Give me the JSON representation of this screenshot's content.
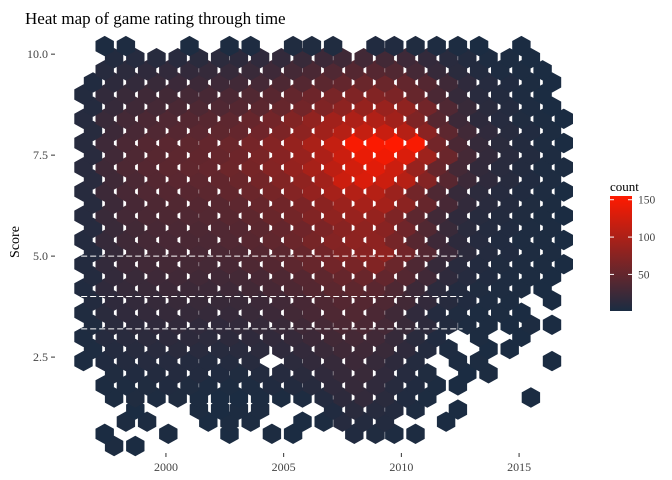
{
  "chart_data": {
    "type": "heatmap",
    "geometry": "hexbin",
    "title": "Heat map of game rating through time",
    "xlabel": "",
    "ylabel": "Score",
    "xlim": [
      1995.5,
      2017.8
    ],
    "ylim": [
      0.2,
      10.4
    ],
    "x_ticks": [
      2000,
      2005,
      2010,
      2015
    ],
    "y_ticks": [
      2.5,
      5.0,
      7.5,
      10.0
    ],
    "y_tick_labels": [
      "2.5",
      "5.0",
      "7.5",
      "10.0"
    ],
    "grid": false,
    "legend": {
      "title": "count",
      "position": "right",
      "ticks": [
        50,
        100,
        150
      ],
      "domain": [
        1,
        155
      ]
    },
    "colors": {
      "low": "#1a2c42",
      "high": "#ff1a00",
      "missing": "#ffffff"
    },
    "hex_grid": {
      "x_start": 1996.5,
      "x_step": 0.88,
      "y_start": 0.0,
      "y_step": 0.3
    },
    "rows": [
      {
        "y": 0.3,
        "counts": {
          "1997.8": 3,
          "1998.7": 2
        }
      },
      {
        "y": 0.6,
        "counts": {
          "1997.4": 2,
          "2000.1": 3,
          "2002.7": 2,
          "2004.5": 3,
          "2005.4": 2,
          "2008.0": 6,
          "2008.9": 5,
          "2009.7": 4,
          "2010.6": 3
        }
      },
      {
        "y": 0.9,
        "counts": {
          "1998.3": 3,
          "1999.2": 3,
          "2001.8": 2,
          "2002.7": 3,
          "2003.6": 3,
          "2005.8": 2,
          "2006.7": 3,
          "2007.5": 9,
          "2008.4": 8,
          "2009.3": 7,
          "2011.9": 2
        }
      },
      {
        "y": 1.2,
        "counts": {
          "1998.7": 2,
          "2001.4": 3,
          "2002.3": 2,
          "2003.1": 3,
          "2004.0": 4,
          "2007.1": 6,
          "2008.0": 12,
          "2008.9": 10,
          "2009.7": 8,
          "2010.6": 4,
          "2012.4": 2
        }
      },
      {
        "y": 1.5,
        "counts": {
          "1997.8": 3,
          "1998.7": 5,
          "1999.6": 4,
          "2000.5": 5,
          "2001.4": 3,
          "2002.3": 2,
          "2003.1": 2,
          "2004.0": 3,
          "2004.9": 3,
          "2005.8": 4,
          "2006.7": 8,
          "2007.5": 14,
          "2008.4": 18,
          "2009.3": 12,
          "2010.2": 6,
          "2011.1": 3,
          "2015.5": 2
        }
      },
      {
        "y": 1.8,
        "counts": {
          "1997.4": 3,
          "1998.3": 4,
          "1999.2": 5,
          "2000.1": 6,
          "2001.0": 5,
          "2001.8": 4,
          "2002.7": 3,
          "2003.6": 4,
          "2004.5": 6,
          "2005.4": 7,
          "2006.2": 10,
          "2007.1": 15,
          "2008.0": 20,
          "2008.9": 16,
          "2009.7": 10,
          "2010.6": 6,
          "2011.5": 3,
          "2012.4": 2
        }
      },
      {
        "y": 2.1,
        "counts": {
          "1997.8": 5,
          "1998.7": 6,
          "1999.6": 7,
          "2000.5": 8,
          "2001.4": 7,
          "2002.3": 6,
          "2003.1": 5,
          "2004.0": 7,
          "2004.9": 9,
          "2005.8": 12,
          "2006.7": 16,
          "2007.5": 20,
          "2008.4": 22,
          "2009.3": 16,
          "2010.2": 9,
          "2011.1": 5,
          "2012.8": 2,
          "2013.7": 3
        }
      },
      {
        "y": 2.4,
        "counts": {
          "1996.5": 3,
          "1997.4": 6,
          "1998.3": 8,
          "1999.2": 9,
          "2000.1": 9,
          "2001.0": 8,
          "2001.8": 7,
          "2002.7": 8,
          "2003.6": 10,
          "2005.4": 13,
          "2006.2": 17,
          "2007.1": 20,
          "2008.0": 24,
          "2008.9": 20,
          "2009.7": 14,
          "2010.6": 8,
          "2012.4": 3,
          "2013.3": 3,
          "2016.4": 2
        }
      },
      {
        "y": 2.7,
        "counts": {
          "1996.9": 4,
          "1997.8": 8,
          "1998.7": 10,
          "1999.6": 11,
          "2000.5": 12,
          "2001.4": 11,
          "2002.3": 10,
          "2003.1": 11,
          "2004.0": 13,
          "2004.9": 15,
          "2005.8": 18,
          "2006.7": 22,
          "2007.5": 26,
          "2008.4": 26,
          "2009.3": 22,
          "2010.2": 15,
          "2011.1": 8,
          "2012.0": 4,
          "2013.7": 2,
          "2014.6": 2
        }
      },
      {
        "y": 3.0,
        "counts": {
          "1996.5": 4,
          "1997.4": 9,
          "1998.3": 11,
          "1999.2": 13,
          "2000.1": 14,
          "2001.0": 14,
          "2001.8": 13,
          "2002.7": 14,
          "2003.6": 15,
          "2004.5": 17,
          "2005.4": 20,
          "2006.2": 24,
          "2007.1": 28,
          "2008.0": 30,
          "2008.9": 27,
          "2009.7": 20,
          "2010.6": 12,
          "2011.5": 6,
          "2013.3": 3,
          "2015.1": 2
        }
      },
      {
        "y": 3.3,
        "counts": {
          "1996.9": 5,
          "1997.8": 12,
          "1998.7": 14,
          "1999.6": 16,
          "2000.5": 17,
          "2001.4": 16,
          "2002.3": 16,
          "2003.1": 17,
          "2004.0": 19,
          "2004.9": 22,
          "2005.8": 26,
          "2006.7": 30,
          "2007.5": 34,
          "2008.4": 34,
          "2009.3": 30,
          "2010.2": 22,
          "2011.1": 14,
          "2012.0": 7,
          "2012.8": 4,
          "2013.7": 3,
          "2014.6": 2,
          "2015.5": 3,
          "2016.4": 2
        }
      },
      {
        "y": 3.6,
        "counts": {
          "1996.5": 5,
          "1997.4": 12,
          "1998.3": 16,
          "1999.2": 18,
          "2000.1": 19,
          "2001.0": 19,
          "2001.8": 19,
          "2002.7": 20,
          "2003.6": 22,
          "2004.5": 24,
          "2005.4": 28,
          "2006.2": 32,
          "2007.1": 36,
          "2008.0": 38,
          "2008.9": 34,
          "2009.7": 26,
          "2010.6": 16,
          "2011.5": 8,
          "2012.4": 5,
          "2013.3": 3,
          "2014.2": 3,
          "2015.1": 2
        }
      },
      {
        "y": 3.9,
        "counts": {
          "1996.9": 7,
          "1997.8": 15,
          "1998.7": 18,
          "1999.6": 20,
          "2000.5": 21,
          "2001.4": 21,
          "2002.3": 21,
          "2003.1": 22,
          "2004.0": 24,
          "2004.9": 27,
          "2005.8": 31,
          "2006.7": 36,
          "2007.5": 40,
          "2008.4": 40,
          "2009.3": 36,
          "2010.2": 28,
          "2011.1": 18,
          "2012.0": 10,
          "2012.8": 6,
          "2013.7": 4,
          "2014.6": 3,
          "2016.4": 2
        }
      },
      {
        "y": 4.2,
        "counts": {
          "1996.5": 6,
          "1997.4": 16,
          "1998.3": 20,
          "1999.2": 22,
          "2000.1": 24,
          "2001.0": 24,
          "2001.8": 24,
          "2002.7": 25,
          "2003.6": 28,
          "2004.5": 31,
          "2005.4": 35,
          "2006.2": 40,
          "2007.1": 45,
          "2008.0": 47,
          "2008.9": 44,
          "2009.7": 36,
          "2010.6": 24,
          "2011.5": 13,
          "2012.4": 7,
          "2013.3": 5,
          "2014.2": 4,
          "2015.1": 3,
          "2016.0": 2
        }
      },
      {
        "y": 4.5,
        "counts": {
          "1996.9": 8,
          "1997.8": 18,
          "1998.7": 22,
          "1999.6": 25,
          "2000.5": 27,
          "2001.4": 27,
          "2002.3": 27,
          "2003.1": 29,
          "2004.0": 32,
          "2004.9": 36,
          "2005.8": 41,
          "2006.7": 47,
          "2007.5": 52,
          "2008.4": 54,
          "2009.3": 50,
          "2010.2": 40,
          "2011.1": 27,
          "2012.0": 15,
          "2012.8": 9,
          "2013.7": 6,
          "2014.6": 4,
          "2015.5": 3,
          "2016.4": 2
        }
      },
      {
        "y": 4.8,
        "counts": {
          "1996.5": 7,
          "1997.4": 18,
          "1998.3": 24,
          "1999.2": 27,
          "2000.1": 29,
          "2001.0": 30,
          "2001.8": 30,
          "2002.7": 32,
          "2003.6": 36,
          "2004.5": 40,
          "2005.4": 46,
          "2006.2": 53,
          "2007.1": 60,
          "2008.0": 64,
          "2008.9": 70,
          "2009.7": 55,
          "2010.6": 36,
          "2011.5": 20,
          "2012.4": 11,
          "2013.3": 7,
          "2014.2": 5,
          "2015.1": 4,
          "2016.0": 3,
          "2016.9": 2
        }
      },
      {
        "y": 5.1,
        "counts": {
          "1996.9": 8,
          "1997.8": 20,
          "1998.7": 26,
          "1999.6": 29,
          "2000.5": 31,
          "2001.4": 32,
          "2002.3": 33,
          "2003.1": 35,
          "2004.0": 40,
          "2004.9": 45,
          "2005.8": 52,
          "2006.7": 60,
          "2007.5": 70,
          "2008.4": 75,
          "2009.3": 80,
          "2010.2": 60,
          "2011.1": 40,
          "2012.0": 23,
          "2012.8": 13,
          "2013.7": 8,
          "2014.6": 6,
          "2015.5": 4,
          "2016.4": 3
        }
      },
      {
        "y": 5.4,
        "counts": {
          "1996.5": 8,
          "1997.4": 20,
          "1998.3": 26,
          "1999.2": 30,
          "2000.1": 32,
          "2001.0": 33,
          "2001.8": 34,
          "2002.7": 37,
          "2003.6": 42,
          "2004.5": 48,
          "2005.4": 55,
          "2006.2": 63,
          "2007.1": 72,
          "2008.0": 78,
          "2008.9": 78,
          "2009.7": 62,
          "2010.6": 42,
          "2011.5": 25,
          "2012.4": 14,
          "2013.3": 9,
          "2014.2": 6,
          "2015.1": 4,
          "2016.0": 3,
          "2016.9": 2
        }
      },
      {
        "y": 5.7,
        "counts": {
          "1996.9": 9,
          "1997.8": 22,
          "1998.7": 28,
          "1999.6": 32,
          "2000.5": 34,
          "2001.4": 35,
          "2002.3": 37,
          "2003.1": 40,
          "2004.0": 45,
          "2004.9": 51,
          "2005.8": 58,
          "2006.7": 66,
          "2007.5": 75,
          "2008.4": 80,
          "2009.3": 75,
          "2010.2": 58,
          "2011.1": 38,
          "2012.0": 22,
          "2012.8": 12,
          "2013.7": 8,
          "2014.6": 6,
          "2015.5": 4,
          "2016.4": 3
        }
      },
      {
        "y": 6.0,
        "counts": {
          "1996.5": 9,
          "1997.4": 22,
          "1998.3": 29,
          "1999.2": 33,
          "2000.1": 35,
          "2001.0": 37,
          "2001.8": 39,
          "2002.7": 42,
          "2003.6": 47,
          "2004.5": 54,
          "2005.4": 61,
          "2006.2": 70,
          "2007.1": 80,
          "2008.0": 86,
          "2008.9": 84,
          "2009.7": 68,
          "2010.6": 46,
          "2011.5": 27,
          "2012.4": 15,
          "2013.3": 10,
          "2014.2": 7,
          "2015.1": 5,
          "2016.0": 3,
          "2016.9": 2
        }
      },
      {
        "y": 6.3,
        "counts": {
          "1996.9": 10,
          "1997.8": 24,
          "1998.7": 31,
          "1999.6": 35,
          "2000.5": 38,
          "2001.4": 40,
          "2002.3": 42,
          "2003.1": 46,
          "2004.0": 52,
          "2004.9": 59,
          "2005.8": 67,
          "2006.7": 77,
          "2007.5": 88,
          "2008.4": 95,
          "2009.3": 94,
          "2010.2": 77,
          "2011.1": 52,
          "2012.0": 31,
          "2012.8": 17,
          "2013.7": 11,
          "2014.6": 8,
          "2015.5": 5,
          "2016.4": 3
        }
      },
      {
        "y": 6.6,
        "counts": {
          "1996.5": 10,
          "1997.4": 24,
          "1998.3": 32,
          "1999.2": 37,
          "2000.1": 40,
          "2001.0": 42,
          "2001.8": 45,
          "2002.7": 49,
          "2003.6": 55,
          "2004.5": 63,
          "2005.4": 72,
          "2006.2": 83,
          "2007.1": 95,
          "2008.0": 104,
          "2008.9": 105,
          "2009.7": 88,
          "2010.6": 60,
          "2011.5": 36,
          "2012.4": 20,
          "2013.3": 13,
          "2014.2": 9,
          "2015.1": 6,
          "2016.0": 4,
          "2016.9": 2
        }
      },
      {
        "y": 6.9,
        "counts": {
          "1996.9": 11,
          "1997.8": 26,
          "1998.7": 34,
          "1999.6": 40,
          "2000.5": 44,
          "2001.4": 46,
          "2002.3": 49,
          "2003.1": 54,
          "2004.0": 61,
          "2004.9": 70,
          "2005.8": 80,
          "2006.7": 92,
          "2007.5": 120,
          "2008.4": 130,
          "2009.3": 120,
          "2010.2": 105,
          "2011.1": 72,
          "2012.0": 43,
          "2012.8": 24,
          "2013.7": 15,
          "2014.6": 10,
          "2015.5": 6,
          "2016.4": 4
        }
      },
      {
        "y": 7.2,
        "counts": {
          "1996.5": 11,
          "1997.4": 26,
          "1998.3": 35,
          "1999.2": 41,
          "2000.1": 45,
          "2001.0": 48,
          "2001.8": 51,
          "2002.7": 56,
          "2003.6": 63,
          "2004.5": 72,
          "2005.4": 83,
          "2006.2": 96,
          "2007.1": 110,
          "2008.0": 125,
          "2008.9": 135,
          "2009.7": 120,
          "2010.6": 85,
          "2011.5": 52,
          "2012.4": 29,
          "2013.3": 17,
          "2014.2": 11,
          "2015.1": 7,
          "2016.0": 4,
          "2016.9": 3
        }
      },
      {
        "y": 7.5,
        "counts": {
          "1996.9": 11,
          "1997.8": 27,
          "1998.7": 36,
          "1999.6": 42,
          "2000.5": 46,
          "2001.4": 49,
          "2002.3": 52,
          "2003.1": 57,
          "2004.0": 65,
          "2004.9": 74,
          "2005.8": 86,
          "2006.7": 100,
          "2007.5": 120,
          "2008.4": 140,
          "2009.3": 145,
          "2010.2": 130,
          "2011.1": 90,
          "2012.0": 55,
          "2012.8": 30,
          "2013.7": 18,
          "2014.6": 11,
          "2015.5": 7,
          "2016.4": 4
        }
      },
      {
        "y": 7.8,
        "counts": {
          "1996.5": 10,
          "1997.4": 25,
          "1998.3": 34,
          "1999.2": 40,
          "2000.1": 44,
          "2001.0": 47,
          "2001.8": 50,
          "2002.7": 55,
          "2003.6": 62,
          "2004.5": 72,
          "2005.4": 84,
          "2006.2": 98,
          "2007.1": 115,
          "2008.0": 150,
          "2008.9": 152,
          "2009.7": 155,
          "2010.6": 150,
          "2011.5": 60,
          "2012.4": 33,
          "2013.3": 19,
          "2014.2": 12,
          "2015.1": 7,
          "2016.0": 4,
          "2016.9": 2
        }
      },
      {
        "y": 8.1,
        "counts": {
          "1996.9": 10,
          "1997.8": 24,
          "1998.7": 32,
          "1999.6": 37,
          "2000.5": 41,
          "2001.4": 44,
          "2002.3": 47,
          "2003.1": 51,
          "2004.0": 58,
          "2004.9": 67,
          "2005.8": 78,
          "2006.7": 91,
          "2007.5": 105,
          "2008.4": 115,
          "2009.3": 118,
          "2010.2": 105,
          "2011.1": 76,
          "2012.0": 46,
          "2012.8": 27,
          "2013.7": 16,
          "2014.6": 10,
          "2015.5": 6,
          "2016.4": 3
        }
      },
      {
        "y": 8.4,
        "counts": {
          "1996.5": 9,
          "1997.4": 22,
          "1998.3": 29,
          "1999.2": 34,
          "2000.1": 37,
          "2001.0": 40,
          "2001.8": 42,
          "2002.7": 46,
          "2003.6": 52,
          "2004.5": 60,
          "2005.4": 70,
          "2006.2": 81,
          "2007.1": 92,
          "2008.0": 100,
          "2008.9": 102,
          "2009.7": 92,
          "2010.6": 68,
          "2011.5": 42,
          "2012.4": 24,
          "2013.3": 14,
          "2014.2": 9,
          "2015.1": 5,
          "2016.0": 3,
          "2016.9": 2
        }
      },
      {
        "y": 8.7,
        "counts": {
          "1996.9": 8,
          "1997.8": 20,
          "1998.7": 26,
          "1999.6": 30,
          "2000.5": 33,
          "2001.4": 35,
          "2002.3": 37,
          "2003.1": 40,
          "2004.0": 45,
          "2004.9": 52,
          "2005.8": 60,
          "2006.7": 69,
          "2007.5": 78,
          "2008.4": 84,
          "2009.3": 86,
          "2010.2": 80,
          "2011.1": 60,
          "2012.0": 37,
          "2012.8": 21,
          "2013.7": 12,
          "2014.6": 8,
          "2015.5": 4,
          "2016.4": 2
        }
      },
      {
        "y": 9.0,
        "counts": {
          "1996.5": 7,
          "1997.4": 17,
          "1998.3": 22,
          "1999.2": 26,
          "2000.1": 28,
          "2001.0": 30,
          "2001.8": 31,
          "2002.7": 34,
          "2003.6": 38,
          "2004.5": 43,
          "2005.4": 50,
          "2006.2": 57,
          "2007.1": 64,
          "2008.0": 69,
          "2008.9": 71,
          "2009.7": 66,
          "2010.6": 52,
          "2011.5": 33,
          "2012.4": 19,
          "2013.3": 11,
          "2014.2": 7,
          "2015.1": 4,
          "2016.0": 2
        }
      },
      {
        "y": 9.3,
        "counts": {
          "1996.9": 6,
          "1997.8": 14,
          "1998.7": 18,
          "1999.6": 21,
          "2000.5": 23,
          "2001.4": 24,
          "2002.3": 25,
          "2003.1": 27,
          "2004.0": 30,
          "2004.9": 35,
          "2005.8": 40,
          "2006.7": 45,
          "2007.5": 50,
          "2008.4": 54,
          "2009.3": 55,
          "2010.2": 50,
          "2011.1": 40,
          "2012.0": 26,
          "2012.8": 15,
          "2013.7": 9,
          "2014.6": 6,
          "2015.5": 3,
          "2016.4": 2
        }
      },
      {
        "y": 9.6,
        "counts": {
          "1997.4": 10,
          "1998.3": 13,
          "1999.2": 15,
          "2000.1": 17,
          "2001.0": 18,
          "2001.8": 19,
          "2002.7": 20,
          "2003.6": 22,
          "2004.5": 25,
          "2005.4": 29,
          "2006.2": 33,
          "2007.1": 37,
          "2008.0": 40,
          "2008.9": 41,
          "2009.7": 38,
          "2010.6": 30,
          "2011.5": 20,
          "2012.4": 12,
          "2013.3": 7,
          "2014.2": 4,
          "2015.1": 3,
          "2016.0": 2
        }
      },
      {
        "y": 9.9,
        "counts": {
          "1997.8": 7,
          "1998.7": 9,
          "1999.6": 10,
          "2000.5": 11,
          "2001.4": 12,
          "2002.3": 13,
          "2003.1": 14,
          "2004.0": 16,
          "2004.9": 18,
          "2005.8": 21,
          "2006.7": 24,
          "2007.5": 26,
          "2008.4": 28,
          "2009.3": 28,
          "2010.2": 25,
          "2011.1": 18,
          "2012.0": 11,
          "2012.8": 7,
          "2013.7": 4,
          "2014.6": 3,
          "2015.5": 2
        }
      },
      {
        "y": 10.2,
        "counts": {
          "1997.4": 3,
          "1998.3": 4,
          "2001.0": 3,
          "2002.7": 3,
          "2003.6": 4,
          "2005.4": 5,
          "2006.2": 5,
          "2007.1": 5,
          "2008.9": 6,
          "2009.7": 6,
          "2010.6": 5,
          "2011.5": 4,
          "2012.4": 3,
          "2013.3": 2,
          "2015.1": 2
        }
      }
    ]
  }
}
